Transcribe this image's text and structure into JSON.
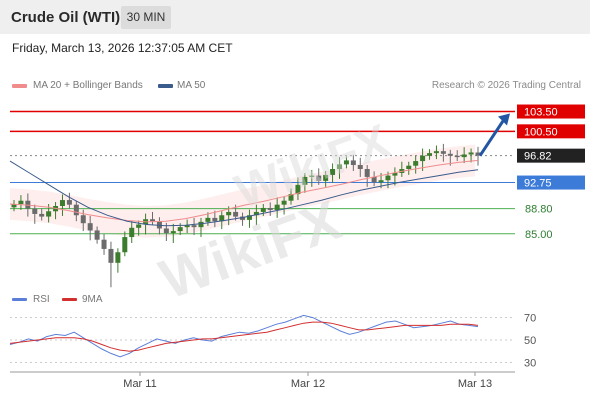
{
  "header": {
    "title": "Crude Oil (WTI)",
    "timeframe": "30 MIN",
    "datetime": "Friday, March 13, 2026 12:37:05 AM CET"
  },
  "legend": {
    "ma20_label": "MA 20 + Bollinger Bands",
    "ma50_label": "MA 50",
    "rsi_label": "RSI",
    "ma9_label": "9MA",
    "credit": "Research © 2026 Trading Central"
  },
  "watermark": "WikiFX",
  "colors": {
    "ma20": "#f08c8c",
    "ma50": "#3b5b8c",
    "bollinger_fill": "#fde2e2",
    "red_level": "#e00000",
    "blue_level": "#3d7bd9",
    "green_level": "#4caf50",
    "current_price": "#222222",
    "rsi_line": "#5b7fd8",
    "rsi_ma": "#d32f2f",
    "candle_up": "#3b7d2c",
    "candle_down": "#6b6b6b",
    "arrow": "#2255a4"
  },
  "chart_data": {
    "type": "candlestick",
    "x_ticks": [
      "Mar 11",
      "Mar 12",
      "Mar 13"
    ],
    "y_ticks": [
      "103.50",
      "100.50",
      "96.82",
      "92.75",
      "88.80",
      "85.00"
    ],
    "ylim": [
      78,
      106
    ],
    "levels": [
      {
        "value": 103.5,
        "label": "103.50",
        "kind": "resistance"
      },
      {
        "value": 100.5,
        "label": "100.50",
        "kind": "resistance"
      },
      {
        "value": 96.82,
        "label": "96.82",
        "kind": "current"
      },
      {
        "value": 92.75,
        "label": "92.75",
        "kind": "pivot"
      },
      {
        "value": 88.8,
        "label": "88.80",
        "kind": "support"
      },
      {
        "value": 85.0,
        "label": "85.00",
        "kind": "support"
      }
    ],
    "series": [
      {
        "name": "MA 20 + Bollinger Bands",
        "values": [
          89.5,
          89.3,
          89.0,
          88.5,
          87.9,
          87.4,
          87.0,
          86.8,
          86.9,
          87.3,
          87.9,
          88.6,
          89.3,
          89.9,
          90.6,
          91.3,
          91.9,
          92.5,
          93.2,
          93.8,
          94.4,
          94.9,
          95.4,
          95.8,
          96.1
        ]
      },
      {
        "name": "MA 50",
        "values": [
          96.0,
          94.2,
          92.4,
          90.6,
          89.0,
          87.8,
          86.9,
          86.4,
          86.2,
          86.3,
          86.6,
          87.0,
          87.5,
          88.1,
          88.7,
          89.4,
          90.1,
          90.9,
          91.6,
          92.2,
          92.8,
          93.3,
          93.8,
          94.3,
          94.7
        ]
      }
    ],
    "candles_close": [
      89.5,
      90.0,
      88.8,
      88.0,
      87.6,
      88.4,
      89.2,
      90.1,
      89.4,
      87.8,
      86.6,
      85.5,
      84.1,
      82.7,
      80.6,
      82.2,
      84.5,
      85.9,
      86.4,
      87.2,
      86.9,
      85.8,
      85.1,
      85.4,
      86.0,
      86.3,
      86.0,
      86.8,
      87.4,
      86.9,
      87.8,
      88.3,
      87.6,
      87.1,
      87.8,
      88.3,
      88.9,
      88.6,
      89.4,
      90.0,
      91.0,
      92.4,
      93.6,
      93.8,
      93.0,
      93.9,
      94.8,
      95.5,
      96.1,
      95.4,
      94.8,
      93.6,
      92.8,
      93.1,
      93.8,
      94.2,
      94.8,
      95.3,
      96.0,
      96.8,
      97.2,
      97.5,
      97.1,
      96.8,
      96.6,
      97.0,
      97.3,
      96.82
    ],
    "rsi": {
      "yticks": [
        "70",
        "50",
        "30"
      ],
      "ylim": [
        25,
        75
      ],
      "rsi_values": [
        46,
        48,
        51,
        49,
        53,
        55,
        54,
        57,
        52,
        47,
        42,
        38,
        35,
        38,
        43,
        47,
        51,
        49,
        47,
        50,
        52,
        50,
        49,
        53,
        55,
        57,
        56,
        58,
        61,
        64,
        66,
        69,
        72,
        70,
        66,
        62,
        58,
        55,
        57,
        60,
        63,
        66,
        67,
        64,
        61,
        62,
        63,
        65,
        67,
        64,
        63,
        62
      ],
      "ma_values": [
        47,
        48,
        49,
        50,
        51,
        52,
        52,
        52,
        51,
        49,
        46,
        43,
        41,
        40,
        41,
        43,
        45,
        47,
        48,
        49,
        50,
        51,
        51,
        52,
        53,
        54,
        55,
        56,
        57,
        59,
        61,
        63,
        65,
        66,
        66,
        65,
        63,
        61,
        59,
        59,
        60,
        61,
        62,
        63,
        63,
        63,
        63,
        63,
        64,
        64,
        64,
        63
      ]
    }
  }
}
